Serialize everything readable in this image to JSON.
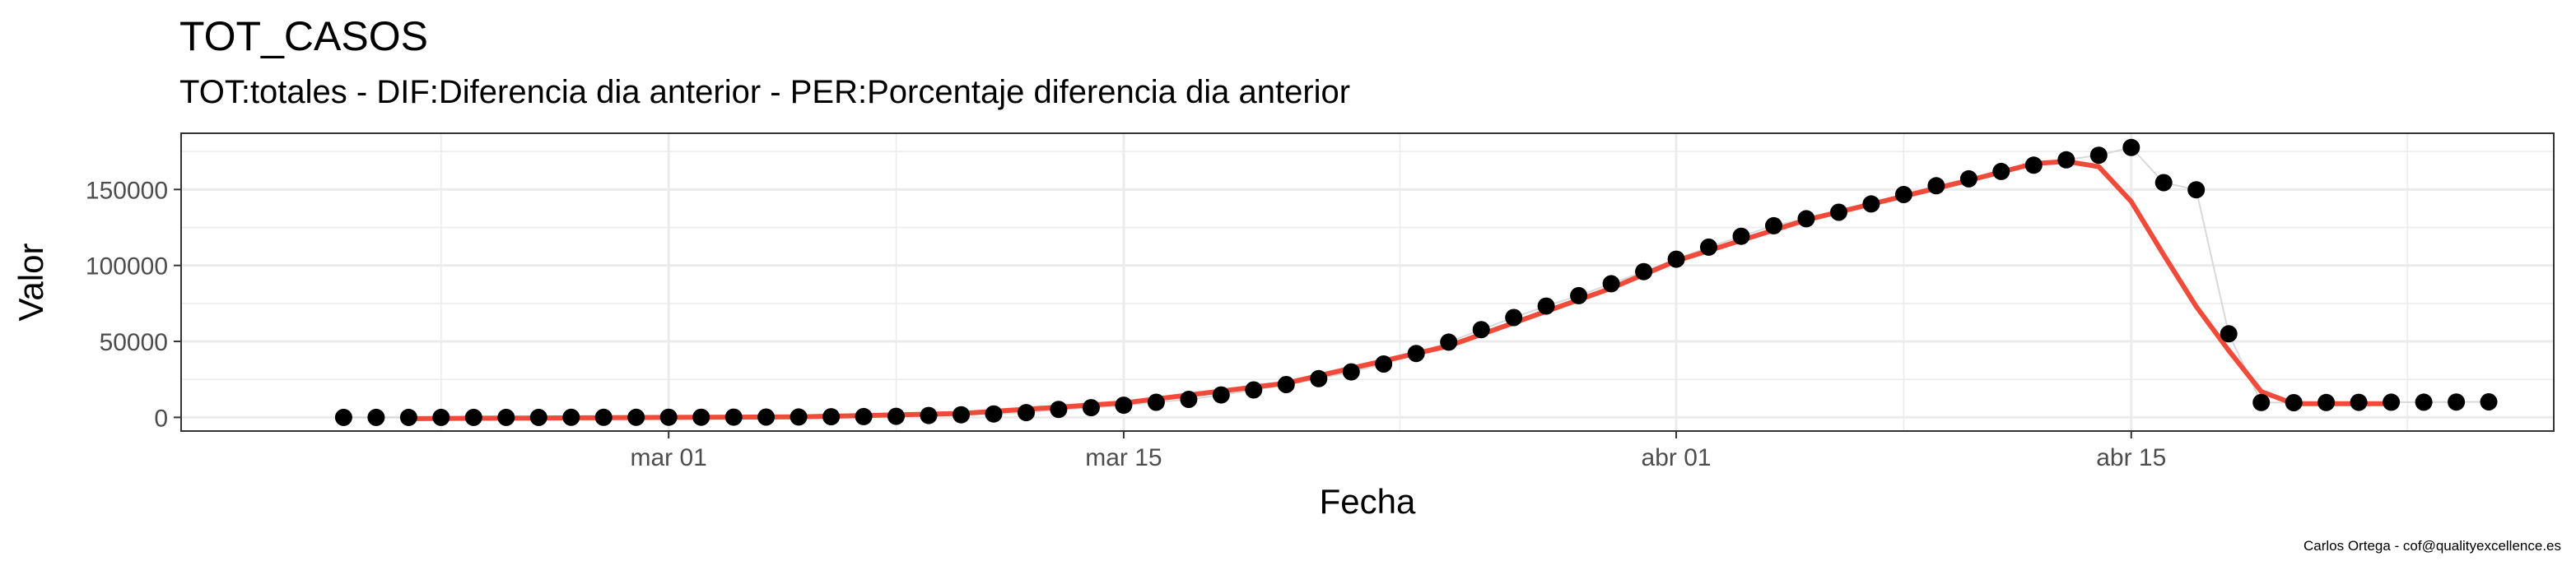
{
  "chart_data": {
    "type": "scatter",
    "title": "TOT_CASOS",
    "subtitle": "TOT:totales - DIF:Diferencia dia anterior - PER:Porcentaje diferencia dia anterior",
    "caption": "Carlos Ortega - cof@qualityexcellence.es",
    "xlabel": "Fecha",
    "ylabel": "Valor",
    "x_tick_labels": [
      {
        "date": "2020-03-01",
        "label": "mar 01"
      },
      {
        "date": "2020-03-15",
        "label": "mar 15"
      },
      {
        "date": "2020-04-01",
        "label": "abr 01"
      },
      {
        "date": "2020-04-15",
        "label": "abr 15"
      }
    ],
    "y_ticks": [
      0,
      50000,
      100000,
      150000
    ],
    "xlim": [
      "2020-02-15",
      "2020-04-28"
    ],
    "ylim": [
      -9000,
      187000
    ],
    "grid": true,
    "colors": {
      "points": "#000000",
      "connector": "#d9d9d9",
      "smooth": "#f04b3a",
      "grid": "#ebebeb",
      "panel_border": "#333333"
    },
    "series": [
      {
        "kind": "points",
        "x": [
          "2020-02-20",
          "2020-02-21",
          "2020-02-22",
          "2020-02-23",
          "2020-02-24",
          "2020-02-25",
          "2020-02-26",
          "2020-02-27",
          "2020-02-28",
          "2020-02-29",
          "2020-03-01",
          "2020-03-02",
          "2020-03-03",
          "2020-03-04",
          "2020-03-05",
          "2020-03-06",
          "2020-03-07",
          "2020-03-08",
          "2020-03-09",
          "2020-03-10",
          "2020-03-11",
          "2020-03-12",
          "2020-03-13",
          "2020-03-14",
          "2020-03-15",
          "2020-03-16",
          "2020-03-17",
          "2020-03-18",
          "2020-03-19",
          "2020-03-20",
          "2020-03-21",
          "2020-03-22",
          "2020-03-23",
          "2020-03-24",
          "2020-03-25",
          "2020-03-26",
          "2020-03-27",
          "2020-03-28",
          "2020-03-29",
          "2020-03-30",
          "2020-03-31",
          "2020-04-01",
          "2020-04-02",
          "2020-04-03",
          "2020-04-04",
          "2020-04-05",
          "2020-04-06",
          "2020-04-07",
          "2020-04-08",
          "2020-04-09",
          "2020-04-10",
          "2020-04-11",
          "2020-04-12",
          "2020-04-13",
          "2020-04-14",
          "2020-04-15",
          "2020-04-16",
          "2020-04-17",
          "2020-04-18",
          "2020-04-19",
          "2020-04-20",
          "2020-04-21",
          "2020-04-22",
          "2020-04-23",
          "2020-04-24",
          "2020-04-25",
          "2020-04-26"
        ],
        "y": [
          3,
          3,
          3,
          3,
          3,
          4,
          12,
          23,
          32,
          45,
          84,
          120,
          165,
          228,
          282,
          401,
          525,
          674,
          1231,
          1695,
          2277,
          3146,
          5232,
          6391,
          7988,
          9942,
          11826,
          14769,
          18077,
          21571,
          25496,
          29909,
          35136,
          42058,
          49515,
          57786,
          65719,
          73235,
          80110,
          87956,
          95923,
          104118,
          112065,
          119199,
          126168,
          130759,
          135032,
          140510,
          146690,
          152446,
          157022,
          161852,
          166019,
          169496,
          172541,
          177633,
          154500,
          149800,
          55000,
          9800,
          9700,
          9800,
          9900,
          10000,
          10000,
          10100,
          10200
        ]
      },
      {
        "kind": "smooth",
        "x": [
          "2020-02-22",
          "2020-02-25",
          "2020-03-01",
          "2020-03-05",
          "2020-03-10",
          "2020-03-15",
          "2020-03-20",
          "2020-03-25",
          "2020-03-30",
          "2020-04-01",
          "2020-04-05",
          "2020-04-10",
          "2020-04-12",
          "2020-04-13",
          "2020-04-14",
          "2020-04-15",
          "2020-04-16",
          "2020-04-17",
          "2020-04-18",
          "2020-04-19",
          "2020-04-20",
          "2020-04-23"
        ],
        "y": [
          -800,
          -500,
          0,
          300,
          2600,
          9500,
          22500,
          47000,
          85000,
          103000,
          130000,
          156000,
          167000,
          168500,
          165000,
          142000,
          107000,
          73000,
          44000,
          17000,
          9000,
          9000
        ]
      }
    ]
  }
}
